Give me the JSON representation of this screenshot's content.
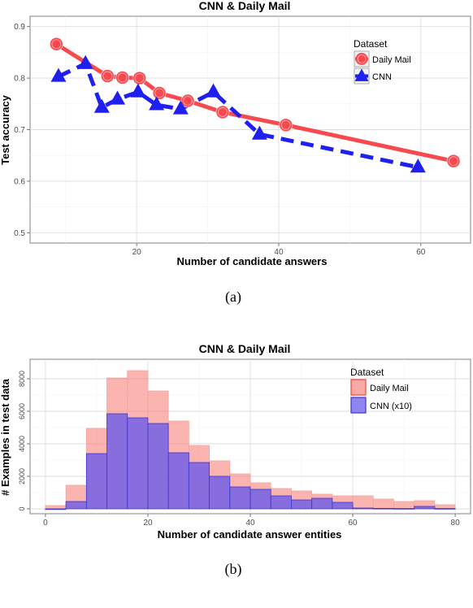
{
  "chart_data": [
    {
      "type": "line",
      "title": "CNN & Daily Mail",
      "xlabel": "Number of candidate answers",
      "ylabel": "Test accuracy",
      "xlim": [
        5,
        67
      ],
      "ylim": [
        0.48,
        0.92
      ],
      "x_ticks": [
        20,
        40,
        60
      ],
      "y_ticks": [
        0.5,
        0.6,
        0.7,
        0.8,
        0.9
      ],
      "grid": true,
      "legend": {
        "title": "Dataset",
        "position": "top-right"
      },
      "series": [
        {
          "name": "Daily Mail",
          "color": "#f8494f",
          "marker": "circle",
          "line_style": "solid",
          "x": [
            8.7,
            15.9,
            18.0,
            20.4,
            23.2,
            27.2,
            32.1,
            41.0,
            64.6
          ],
          "y": [
            0.866,
            0.804,
            0.801,
            0.8,
            0.771,
            0.756,
            0.734,
            0.709,
            0.639
          ]
        },
        {
          "name": "CNN",
          "color": "#1f1ff0",
          "marker": "triangle",
          "line_style": "dashed",
          "x": [
            9.0,
            12.8,
            15.1,
            17.3,
            20.2,
            22.8,
            26.2,
            30.8,
            37.3,
            59.6
          ],
          "y": [
            0.803,
            0.828,
            0.743,
            0.759,
            0.773,
            0.748,
            0.74,
            0.773,
            0.691,
            0.627
          ]
        }
      ],
      "caption": "(a)"
    },
    {
      "type": "bar",
      "subtype": "overlaid-histogram",
      "title": "CNN & Daily Mail",
      "xlabel": "Number of candidate answer entities",
      "ylabel": "# Examples in test data",
      "xlim": [
        -3,
        83
      ],
      "ylim": [
        -300,
        9200
      ],
      "x_ticks": [
        0,
        20,
        40,
        60,
        80
      ],
      "y_ticks": [
        0,
        2000,
        4000,
        6000,
        8000
      ],
      "bin_width": 5,
      "grid": true,
      "legend": {
        "title": "Dataset",
        "position": "top-right"
      },
      "series": [
        {
          "name": "Daily Mail",
          "color": "#f8766d",
          "bin_starts": [
            0,
            4,
            8,
            12,
            16,
            20,
            24,
            28,
            32,
            36,
            40,
            44,
            48,
            52,
            56,
            60,
            64,
            68,
            72,
            76
          ],
          "values": [
            200,
            1450,
            4950,
            8050,
            8500,
            7250,
            5400,
            3900,
            2950,
            2150,
            1600,
            1250,
            1100,
            900,
            800,
            800,
            600,
            450,
            500,
            250
          ]
        },
        {
          "name": "CNN (x10)",
          "color": "#6a5be9",
          "bin_starts": [
            0,
            4,
            8,
            12,
            16,
            20,
            24,
            28,
            32,
            36,
            40,
            44,
            48,
            52,
            56,
            60,
            64,
            68,
            72,
            76
          ],
          "values": [
            0,
            450,
            3400,
            5850,
            5600,
            5250,
            3450,
            2850,
            2000,
            1350,
            1200,
            800,
            550,
            650,
            400,
            50,
            30,
            20,
            150,
            20
          ]
        }
      ],
      "caption": "(b)"
    }
  ]
}
